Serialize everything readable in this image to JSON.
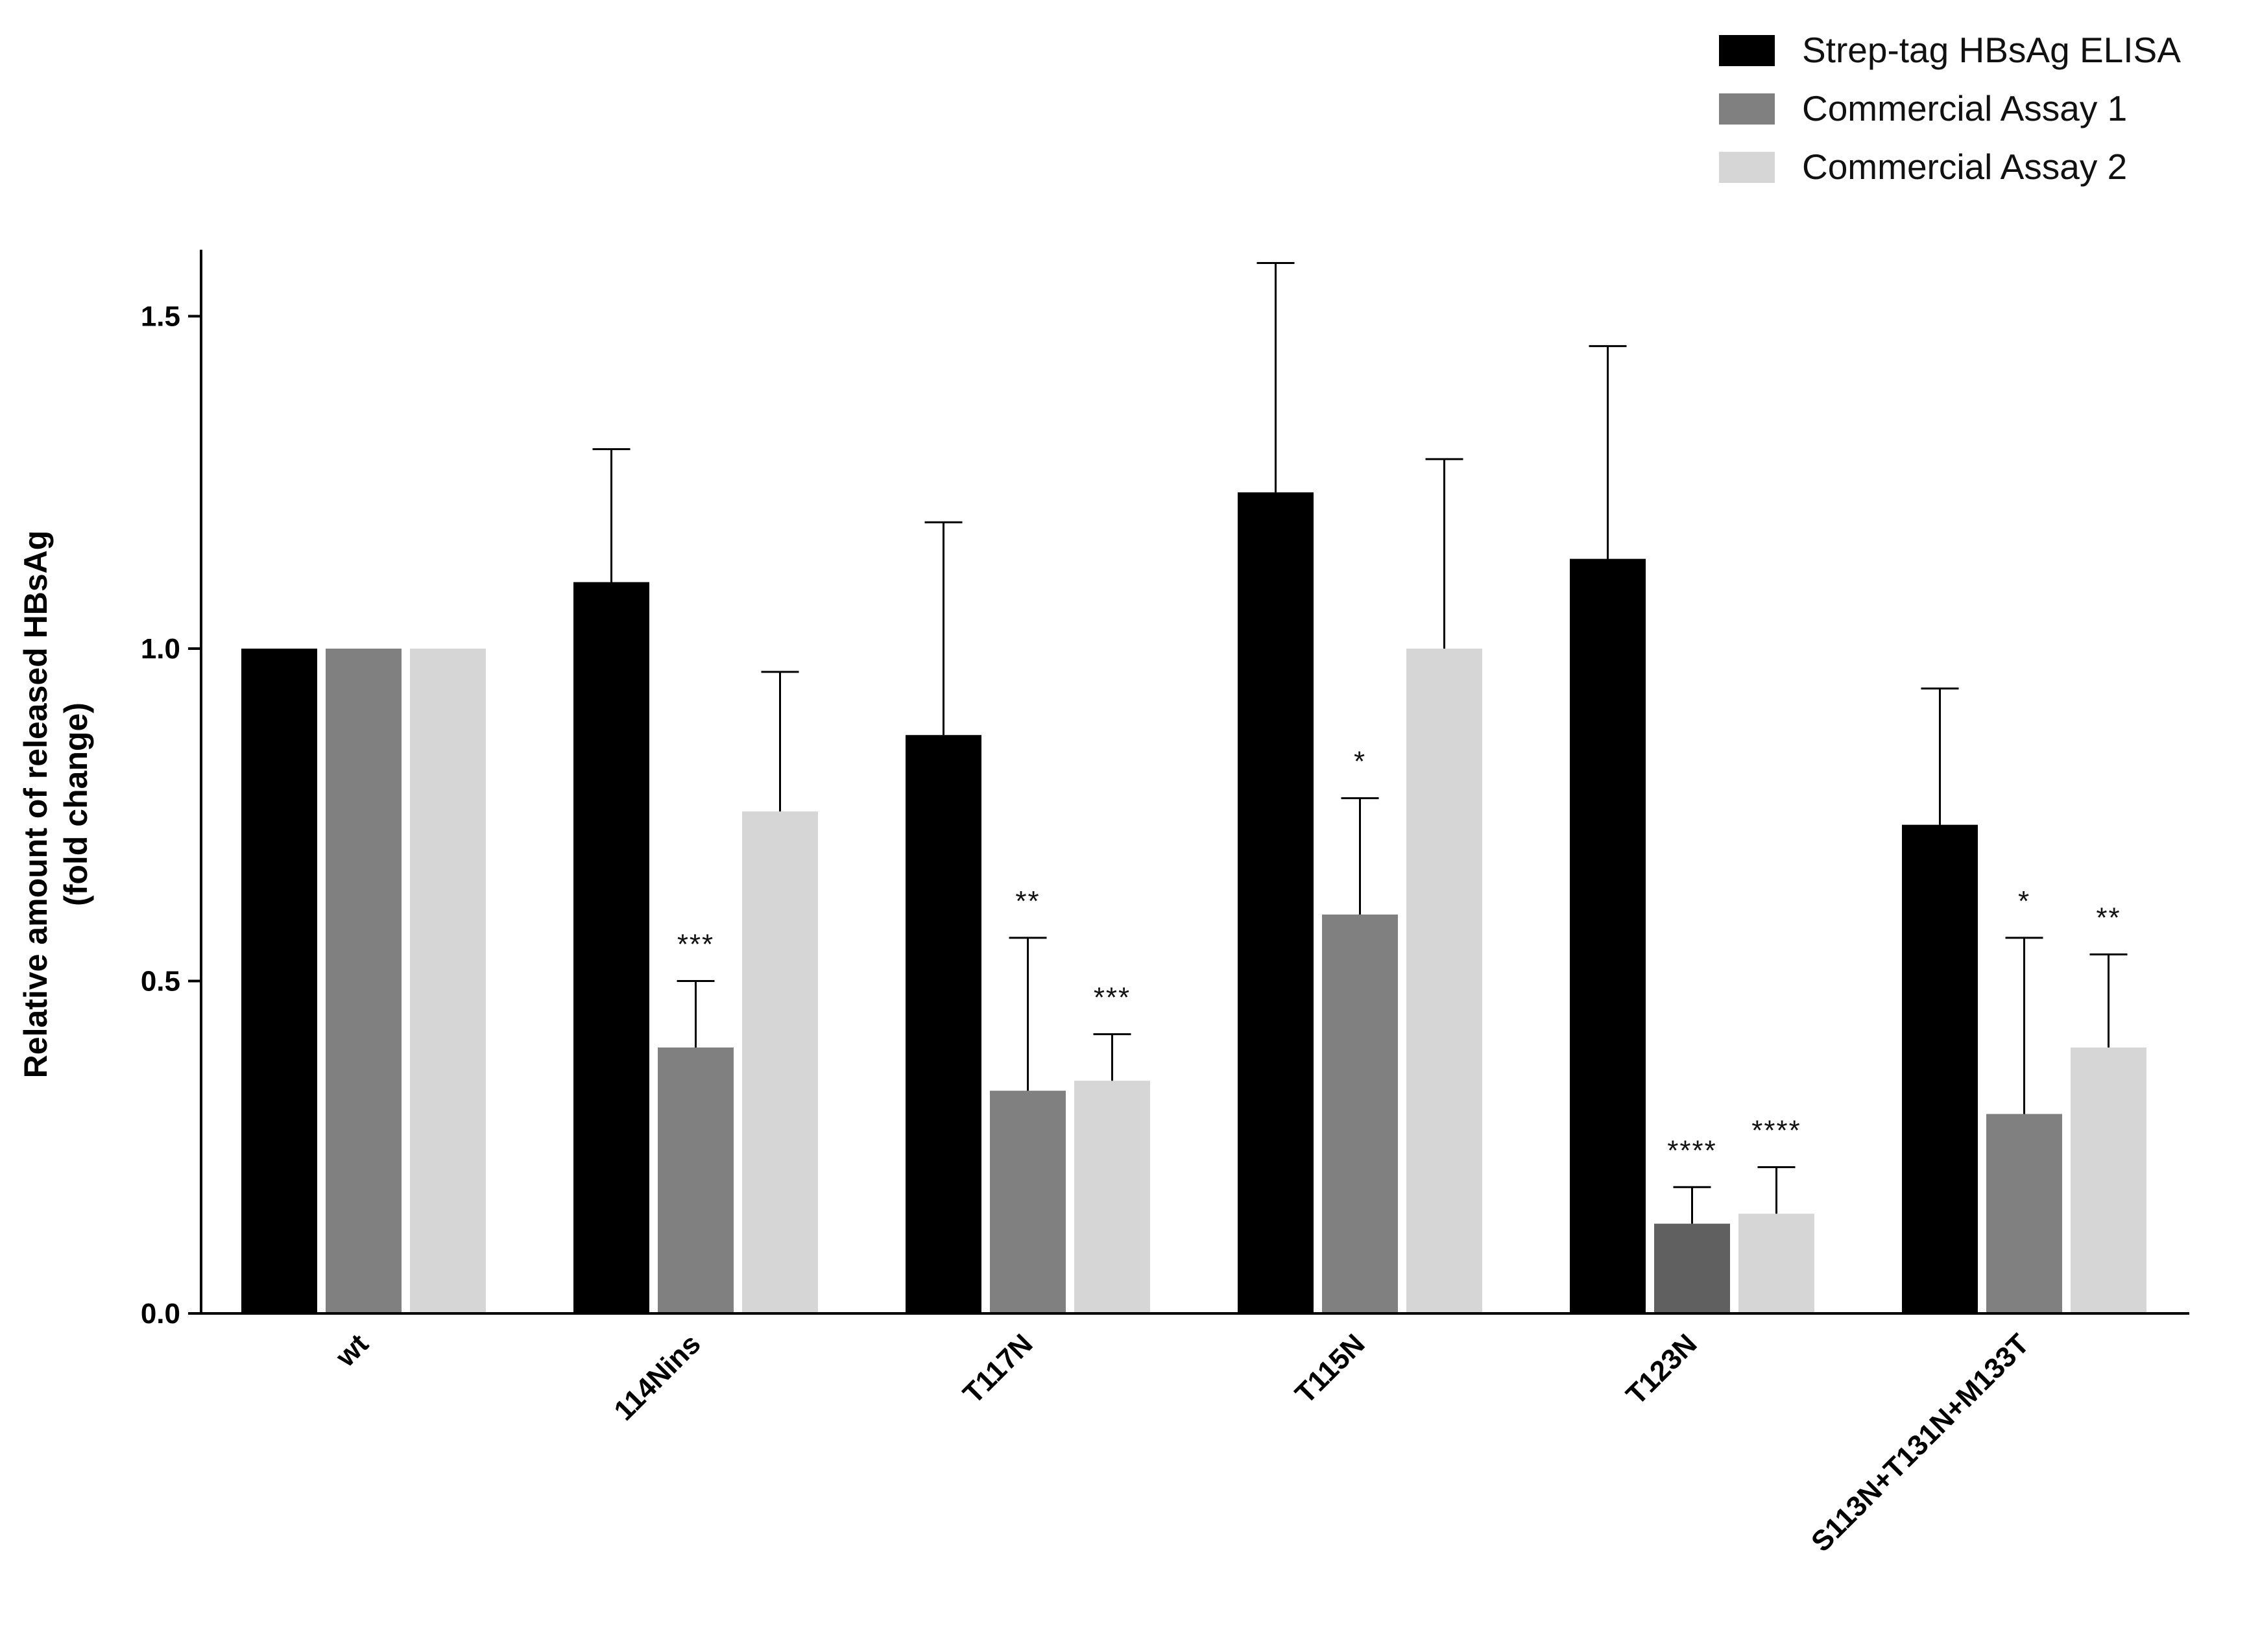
{
  "chart_data": {
    "type": "bar",
    "title": "",
    "xlabel": "",
    "ylabel_lines": [
      "Relative amount of released HBsAg",
      "(fold change)"
    ],
    "ylim": [
      0,
      1.6
    ],
    "yticks": [
      0.0,
      0.5,
      1.0,
      1.5
    ],
    "ytick_labels": [
      "0.0",
      "0.5",
      "1.0",
      "1.5"
    ],
    "legend_position": "top-right",
    "categories": [
      "wt",
      "114Nins",
      "T117N",
      "T115N",
      "T123N",
      "S113N+T131N+M133T"
    ],
    "series": [
      {
        "name": "Strep-tag HBsAg ELISA",
        "color": "#000000",
        "values": [
          1.0,
          1.1,
          0.87,
          1.235,
          1.135,
          0.735
        ],
        "error": [
          null,
          0.2,
          0.32,
          0.345,
          0.32,
          0.205
        ],
        "significance": [
          "",
          "",
          "",
          "",
          "",
          ""
        ]
      },
      {
        "name": "Commercial Assay 1",
        "color": "#808080",
        "values": [
          1.0,
          0.4,
          0.335,
          0.6,
          0.135,
          0.3
        ],
        "error": [
          null,
          0.1,
          0.23,
          0.175,
          0.055,
          0.265
        ],
        "significance": [
          "",
          "***",
          "**",
          "*",
          "****",
          "*"
        ]
      },
      {
        "name": "Commercial  Assay 2",
        "color": "#d6d6d6",
        "values": [
          1.0,
          0.755,
          0.35,
          1.0,
          0.15,
          0.4
        ],
        "error": [
          null,
          0.21,
          0.07,
          0.285,
          0.07,
          0.14
        ],
        "significance": [
          "",
          "",
          "***",
          "",
          "****",
          "**"
        ]
      }
    ]
  }
}
